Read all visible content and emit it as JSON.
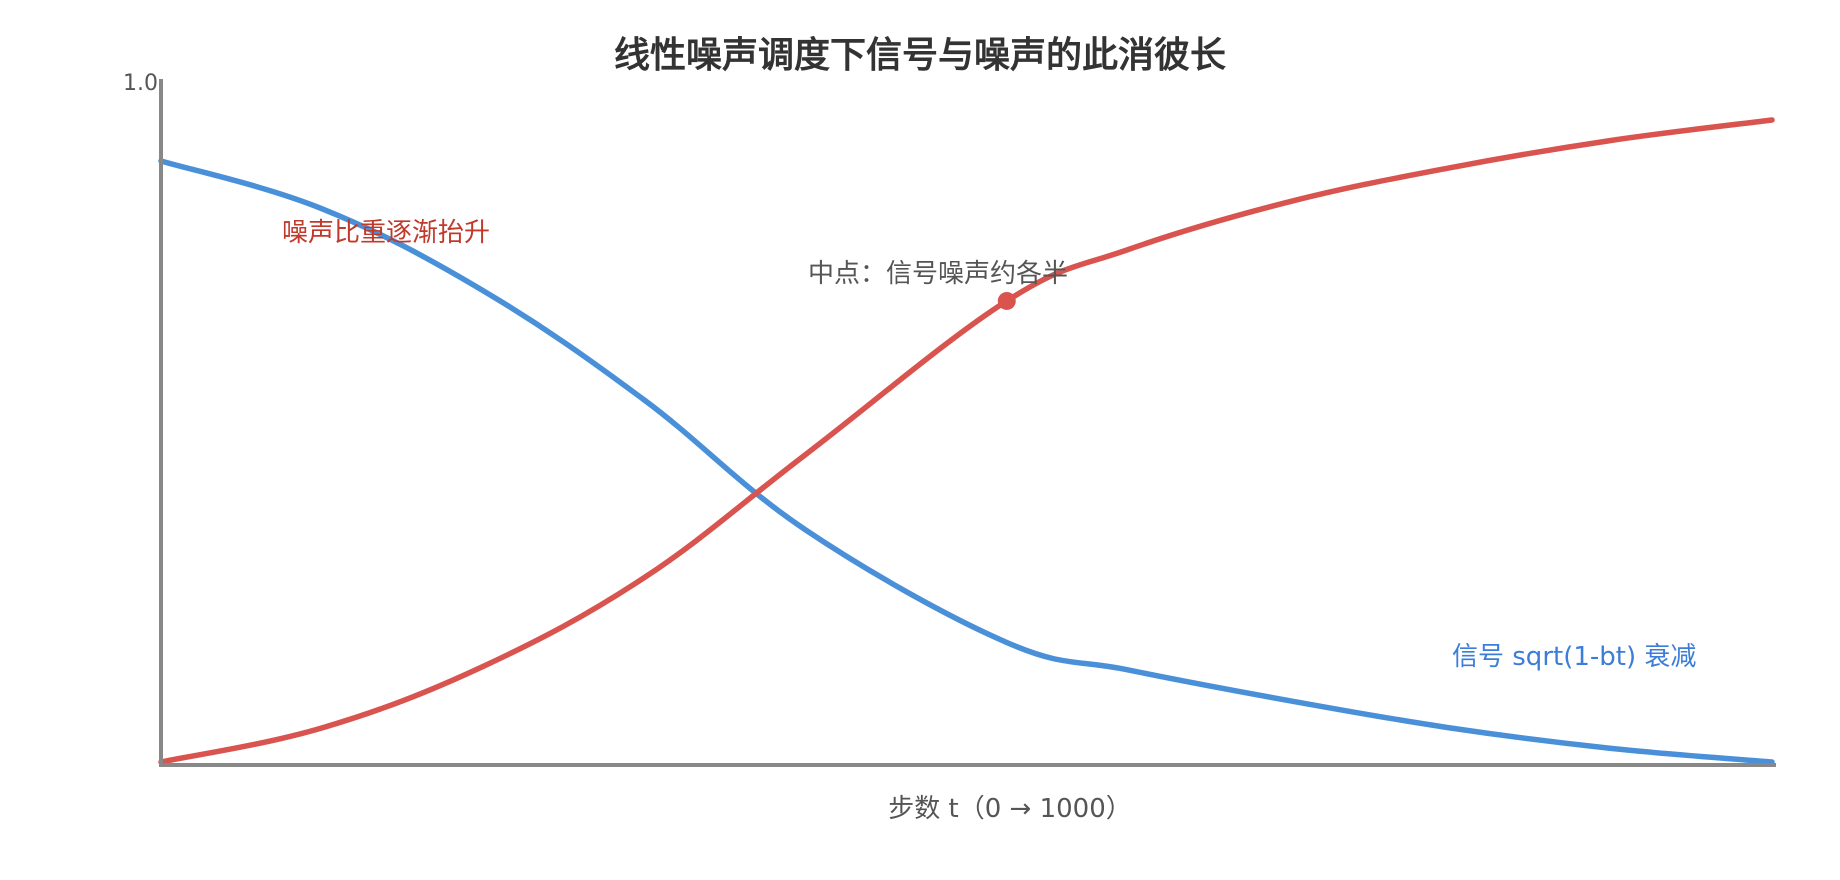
{
  "chart_data": {
    "type": "line",
    "title": "线性噪声调度下信号与噪声的此消彼长",
    "xlabel": "步数 t（0 → 1000）",
    "ylabel": "",
    "xlim": [
      0,
      1000
    ],
    "ylim": [
      0,
      1.0
    ],
    "y_ticks": [
      "1.0"
    ],
    "grid": false,
    "colors": {
      "signal": "#4a90d9",
      "noise": "#d9534f",
      "axis": "#888888",
      "title": "#333333",
      "signal_label": "#3b7dd8",
      "noise_label": "#c0392b"
    },
    "series": [
      {
        "key": "signal",
        "x": [
          0,
          100,
          200,
          300,
          400,
          525,
          600,
          700,
          800,
          900,
          1000
        ],
        "values": [
          0.88,
          0.81,
          0.69,
          0.53,
          0.34,
          0.175,
          0.135,
          0.09,
          0.05,
          0.02,
          0.0
        ]
      },
      {
        "key": "noise",
        "x": [
          0,
          100,
          200,
          300,
          400,
          525,
          600,
          700,
          800,
          900,
          1000
        ],
        "values": [
          0.0,
          0.05,
          0.14,
          0.27,
          0.45,
          0.675,
          0.75,
          0.82,
          0.87,
          0.91,
          0.94
        ]
      }
    ],
    "annotations": [
      {
        "key": "noise_label",
        "text": "噪声比重逐渐抬升"
      },
      {
        "key": "midpoint_label",
        "text": "中点：信号噪声约各半"
      },
      {
        "key": "signal_label",
        "text": "信号 sqrt(1-bt) 衰减"
      }
    ],
    "markers": [
      {
        "key": "midpoint",
        "series": "noise",
        "x": 525,
        "y": 0.675
      }
    ]
  }
}
